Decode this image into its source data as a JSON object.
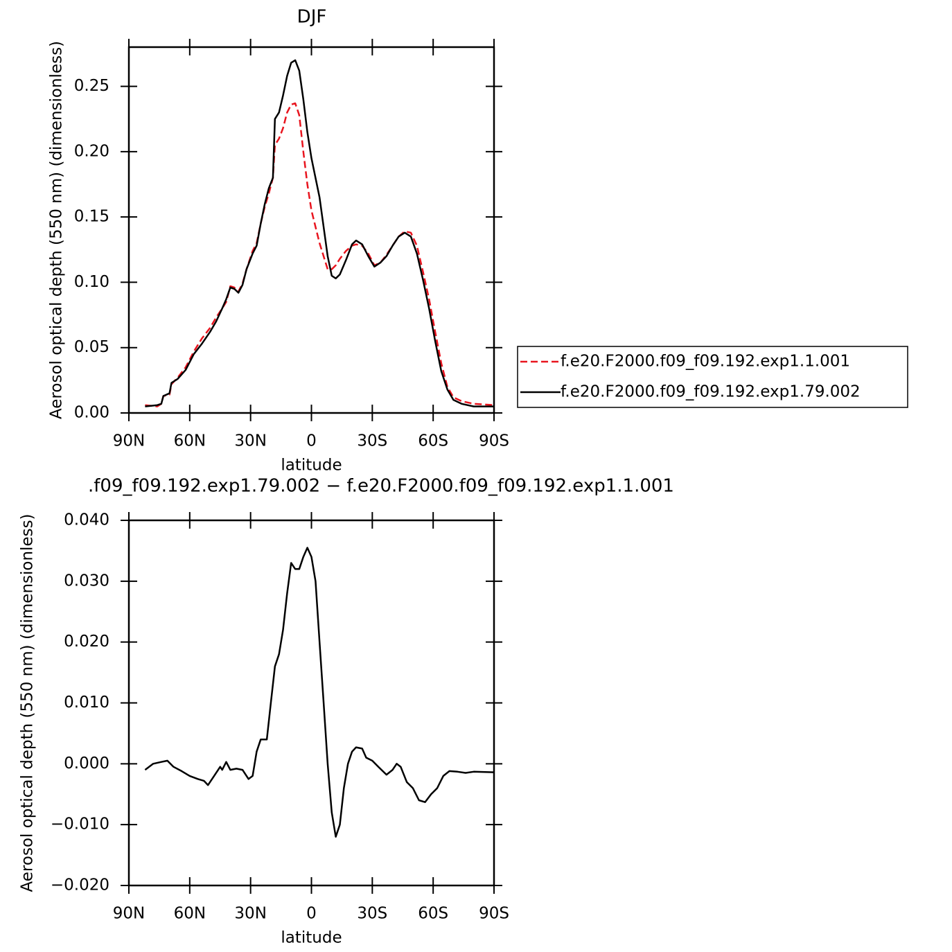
{
  "chart_data": [
    {
      "type": "line",
      "title": "DJF",
      "xlabel": "latitude",
      "ylabel": "Aerosol optical depth (550 nm) (dimensionless)",
      "x": [
        82,
        76,
        74,
        73,
        70,
        69,
        66,
        62,
        58,
        54,
        50,
        47,
        44,
        42,
        40,
        38,
        36,
        34,
        32,
        29,
        27,
        25,
        23,
        21,
        19,
        18,
        16,
        14,
        12,
        10,
        8,
        6,
        4,
        2,
        0,
        -4,
        -8,
        -10,
        -12,
        -14,
        -17,
        -20,
        -22,
        -25,
        -28,
        -31,
        -34,
        -37,
        -40,
        -43,
        -46,
        -49,
        -52,
        -55,
        -58,
        -61,
        -64,
        -67,
        -70,
        -74,
        -80,
        -90
      ],
      "xlim": [
        90,
        -90
      ],
      "xticks": [
        {
          "value": 90,
          "label": "90N"
        },
        {
          "value": 60,
          "label": "60N"
        },
        {
          "value": 30,
          "label": "30N"
        },
        0,
        {
          "value": -30,
          "label": "30S"
        },
        {
          "value": -60,
          "label": "60S"
        },
        {
          "value": -90,
          "label": "90S"
        }
      ],
      "ylim": [
        0,
        0.28
      ],
      "yticks": [
        {
          "value": 0,
          "label": "0.00"
        },
        0.05,
        {
          "value": 0.1,
          "label": "0.10"
        },
        0.15,
        {
          "value": 0.2,
          "label": "0.20"
        },
        0.25
      ],
      "legend": "right",
      "series": [
        {
          "name": "f.e20.F2000.f09_f09.192.exp1.1.001",
          "color": "#e8141e",
          "style": "dashed",
          "values": [
            0.006,
            0.005,
            0.007,
            0.013,
            0.014,
            0.022,
            0.027,
            0.035,
            0.047,
            0.057,
            0.065,
            0.073,
            0.08,
            0.085,
            0.097,
            0.096,
            0.093,
            0.099,
            0.11,
            0.124,
            0.13,
            0.145,
            0.158,
            0.168,
            0.18,
            0.205,
            0.21,
            0.218,
            0.23,
            0.236,
            0.237,
            0.228,
            0.2,
            0.175,
            0.155,
            0.13,
            0.11,
            0.11,
            0.113,
            0.118,
            0.124,
            0.128,
            0.129,
            0.128,
            0.122,
            0.113,
            0.115,
            0.121,
            0.128,
            0.135,
            0.139,
            0.138,
            0.128,
            0.108,
            0.087,
            0.062,
            0.038,
            0.02,
            0.012,
            0.009,
            0.007,
            0.006
          ]
        },
        {
          "name": "f.e20.F2000.f09_f09.192.exp1.79.002",
          "color": "#000000",
          "style": "solid",
          "values": [
            0.005,
            0.006,
            0.007,
            0.013,
            0.015,
            0.023,
            0.026,
            0.033,
            0.045,
            0.053,
            0.062,
            0.07,
            0.08,
            0.087,
            0.096,
            0.095,
            0.092,
            0.098,
            0.11,
            0.122,
            0.128,
            0.145,
            0.16,
            0.172,
            0.18,
            0.225,
            0.23,
            0.243,
            0.258,
            0.268,
            0.27,
            0.262,
            0.24,
            0.215,
            0.195,
            0.165,
            0.12,
            0.105,
            0.103,
            0.106,
            0.117,
            0.129,
            0.132,
            0.129,
            0.12,
            0.112,
            0.115,
            0.12,
            0.128,
            0.135,
            0.138,
            0.135,
            0.122,
            0.102,
            0.08,
            0.055,
            0.032,
            0.018,
            0.01,
            0.007,
            0.005,
            0.005
          ]
        }
      ]
    },
    {
      "type": "line",
      "title": ".f09_f09.192.exp1.79.002 − f.e20.F2000.f09_f09.192.exp1.1.001",
      "xlabel": "latitude",
      "ylabel": "Aerosol optical depth (550 nm) (dimensionless)",
      "x": [
        82,
        78,
        74,
        71,
        68,
        64,
        60,
        56,
        53,
        51,
        48,
        45,
        44,
        42,
        40,
        37,
        34,
        31,
        29,
        27,
        25,
        22,
        20,
        18,
        16,
        14,
        12,
        10,
        8,
        6,
        4,
        2,
        0,
        -2,
        -4,
        -6,
        -8,
        -10,
        -12,
        -14,
        -16,
        -18,
        -20,
        -22,
        -25,
        -27,
        -30,
        -33,
        -37,
        -40,
        -42,
        -44,
        -47,
        -50,
        -53,
        -56,
        -59,
        -62,
        -65,
        -68,
        -72,
        -76,
        -80,
        -90
      ],
      "xlim": [
        90,
        -90
      ],
      "xticks": [
        {
          "value": 90,
          "label": "90N"
        },
        {
          "value": 60,
          "label": "60N"
        },
        {
          "value": 30,
          "label": "30N"
        },
        0,
        {
          "value": -30,
          "label": "30S"
        },
        {
          "value": -60,
          "label": "60S"
        },
        {
          "value": -90,
          "label": "90S"
        }
      ],
      "ylim": [
        -0.02,
        0.04
      ],
      "yticks": [
        {
          "value": -0.02,
          "label": "−0.020"
        },
        {
          "value": -0.01,
          "label": "−0.010"
        },
        {
          "value": 0,
          "label": "0.000"
        },
        {
          "value": 0.01,
          "label": "0.010"
        },
        {
          "value": 0.02,
          "label": "0.020"
        },
        {
          "value": 0.03,
          "label": "0.030"
        },
        {
          "value": 0.04,
          "label": "0.040"
        }
      ],
      "series": [
        {
          "color": "#000000",
          "style": "solid",
          "values": [
            -0.001,
            0.0,
            0.0003,
            0.0005,
            -0.0005,
            -0.0012,
            -0.002,
            -0.0025,
            -0.0028,
            -0.0035,
            -0.002,
            -0.0005,
            -0.001,
            0.0003,
            -0.001,
            -0.0008,
            -0.001,
            -0.0025,
            -0.002,
            0.002,
            0.004,
            0.004,
            0.01,
            0.016,
            0.018,
            0.022,
            0.028,
            0.033,
            0.032,
            0.032,
            0.034,
            0.0355,
            0.034,
            0.03,
            0.02,
            0.01,
            0.0,
            -0.008,
            -0.012,
            -0.01,
            -0.004,
            0.0,
            0.002,
            0.0027,
            0.0025,
            0.001,
            0.0005,
            -0.0005,
            -0.0018,
            -0.001,
            0.0,
            -0.0005,
            -0.003,
            -0.004,
            -0.006,
            -0.0063,
            -0.005,
            -0.004,
            -0.002,
            -0.0012,
            -0.0013,
            -0.0015,
            -0.0013,
            -0.0014
          ]
        }
      ]
    }
  ]
}
